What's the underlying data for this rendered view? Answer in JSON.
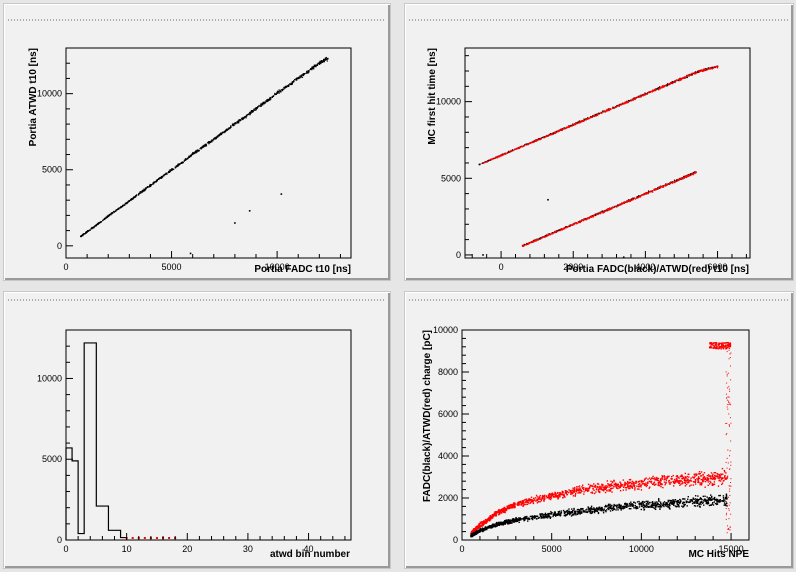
{
  "colors": {
    "series_black": "#000000",
    "series_red": "#ff0000",
    "frame": "#000000",
    "pad_bg": "#f1f1f1"
  },
  "chart_data": [
    {
      "type": "scatter",
      "title": "",
      "xlabel": "Portia FADC t10 [ns]",
      "ylabel": "Portia ATWD t10 [ns]",
      "xlim": [
        0,
        13500
      ],
      "ylim": [
        -800,
        13000
      ],
      "xticks": [
        0,
        5000,
        10000
      ],
      "yticks": [
        0,
        5000,
        10000
      ],
      "series": [
        {
          "color": "#000000",
          "points": [
            [
              700,
              620
            ],
            [
              1000,
              920
            ],
            [
              1500,
              1430
            ],
            [
              2000,
              1950
            ],
            [
              2500,
              2440
            ],
            [
              3000,
              2950
            ],
            [
              3500,
              3460
            ],
            [
              4000,
              3970
            ],
            [
              4500,
              4480
            ],
            [
              5000,
              4990
            ],
            [
              5500,
              5470
            ],
            [
              6000,
              6020
            ],
            [
              6500,
              6510
            ],
            [
              7000,
              7000
            ],
            [
              7500,
              7500
            ],
            [
              8000,
              8020
            ],
            [
              8500,
              8480
            ],
            [
              9000,
              9020
            ],
            [
              9500,
              9490
            ],
            [
              10000,
              10030
            ],
            [
              10500,
              10500
            ],
            [
              11000,
              11010
            ],
            [
              11500,
              11480
            ],
            [
              12000,
              12020
            ],
            [
              12400,
              12300
            ],
            [
              8000,
              1500
            ],
            [
              5900,
              -500
            ],
            [
              8700,
              2300
            ],
            [
              10200,
              3400
            ]
          ]
        }
      ]
    },
    {
      "type": "scatter",
      "title": "",
      "xlabel": "Portia FADC(black)/ATWD(red) t10 [ns]",
      "ylabel": "MC first hit time [ns]",
      "xlim": [
        -1000,
        6900
      ],
      "ylim": [
        -200,
        13500
      ],
      "xticks": [
        0,
        2000,
        4000,
        6000
      ],
      "yticks": [
        0,
        5000,
        10000
      ],
      "series": [
        {
          "color": "#000000",
          "points": [
            [
              -600,
              5900
            ],
            [
              0,
              6500
            ],
            [
              500,
              7000
            ],
            [
              1000,
              7500
            ],
            [
              1500,
              8000
            ],
            [
              2000,
              8500
            ],
            [
              2500,
              9000
            ],
            [
              3000,
              9500
            ],
            [
              3500,
              10000
            ],
            [
              4000,
              10500
            ],
            [
              4500,
              11000
            ],
            [
              5000,
              11500
            ],
            [
              5500,
              12000
            ],
            [
              6000,
              12300
            ],
            [
              600,
              600
            ],
            [
              1000,
              1000
            ],
            [
              1500,
              1500
            ],
            [
              2000,
              2000
            ],
            [
              2500,
              2500
            ],
            [
              3000,
              3000
            ],
            [
              3500,
              3500
            ],
            [
              4000,
              4000
            ],
            [
              4500,
              4500
            ],
            [
              5000,
              5000
            ],
            [
              5400,
              5400
            ],
            [
              1300,
              3600
            ],
            [
              -500,
              0
            ],
            [
              3400,
              -150
            ]
          ]
        },
        {
          "color": "#ff0000",
          "points": [
            [
              -500,
              6000
            ],
            [
              0,
              6480
            ],
            [
              500,
              6980
            ],
            [
              1000,
              7480
            ],
            [
              1500,
              7980
            ],
            [
              2000,
              8480
            ],
            [
              2500,
              8980
            ],
            [
              3000,
              9480
            ],
            [
              3500,
              9980
            ],
            [
              4000,
              10480
            ],
            [
              4500,
              10980
            ],
            [
              5000,
              11480
            ],
            [
              5500,
              11980
            ],
            [
              6000,
              12280
            ],
            [
              600,
              580
            ],
            [
              1000,
              980
            ],
            [
              1500,
              1480
            ],
            [
              2000,
              1980
            ],
            [
              2500,
              2480
            ],
            [
              3000,
              2980
            ],
            [
              3500,
              3480
            ],
            [
              4000,
              3980
            ],
            [
              4500,
              4480
            ],
            [
              5000,
              4980
            ],
            [
              5400,
              5380
            ]
          ]
        }
      ]
    },
    {
      "type": "histogram",
      "title": "",
      "xlabel": "atwd bin number",
      "ylabel": "",
      "xlim": [
        0,
        47
      ],
      "ylim": [
        0,
        13000
      ],
      "xticks": [
        0,
        10,
        20,
        30,
        40
      ],
      "yticks": [
        0,
        5000,
        10000
      ],
      "bins": {
        "edges": [
          0,
          1,
          2,
          3,
          4,
          5,
          6,
          7,
          8,
          9,
          10
        ],
        "black": [
          5700,
          4900,
          400,
          12200,
          12200,
          2100,
          2100,
          600,
          600,
          150
        ],
        "red_markers_x": [
          10,
          11,
          12,
          13,
          14,
          15,
          16,
          17,
          18
        ],
        "red_markers_y": 0
      }
    },
    {
      "type": "scatter",
      "title": "",
      "xlabel": "MC Hits NPE",
      "ylabel": "FADC(black)/ATWD(red) charge [pC]",
      "xlim": [
        0,
        16000
      ],
      "ylim": [
        0,
        10000
      ],
      "xticks": [
        0,
        5000,
        10000,
        15000
      ],
      "yticks": [
        0,
        2000,
        4000,
        6000,
        8000,
        10000
      ],
      "series": [
        {
          "color": "#ff0000",
          "curve": [
            [
              500,
              300
            ],
            [
              1000,
              700
            ],
            [
              2000,
              1300
            ],
            [
              3000,
              1700
            ],
            [
              5000,
              2100
            ],
            [
              7000,
              2400
            ],
            [
              9000,
              2600
            ],
            [
              11000,
              2800
            ],
            [
              13000,
              2900
            ],
            [
              14800,
              3000
            ]
          ],
          "spread": 400,
          "cluster": {
            "x": [
              13800,
              15000
            ],
            "y": [
              9100,
              9400
            ]
          }
        },
        {
          "color": "#000000",
          "curve": [
            [
              500,
              200
            ],
            [
              1000,
              450
            ],
            [
              2000,
              750
            ],
            [
              3000,
              950
            ],
            [
              5000,
              1200
            ],
            [
              7000,
              1400
            ],
            [
              9000,
              1600
            ],
            [
              11000,
              1700
            ],
            [
              13000,
              1850
            ],
            [
              14800,
              1900
            ]
          ],
          "spread": 300
        }
      ]
    }
  ]
}
